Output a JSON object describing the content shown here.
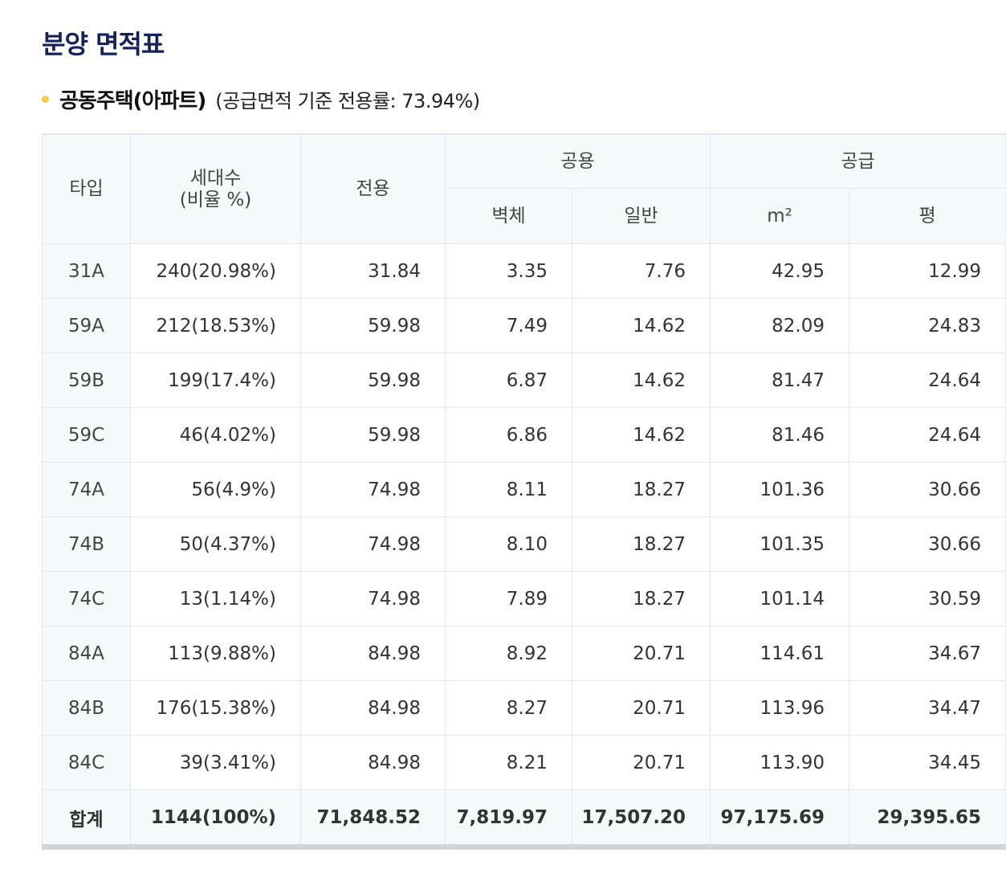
{
  "page": {
    "title": "분양 면적표",
    "section_title": "공동주택(아파트)",
    "section_note": "(공급면적 기준 전용률: 73.94%)"
  },
  "table": {
    "headers": {
      "type": "타입",
      "units_line1": "세대수",
      "units_line2": "(비율 %)",
      "exclusive": "전용",
      "common": "공용",
      "common_wall": "벽체",
      "common_general": "일반",
      "supply": "공급",
      "supply_m2": "m²",
      "supply_pyeong": "평"
    },
    "rows": [
      {
        "type": "31A",
        "units": "240(20.98%)",
        "exclusive": "31.84",
        "wall": "3.35",
        "general": "7.76",
        "m2": "42.95",
        "pyeong": "12.99"
      },
      {
        "type": "59A",
        "units": "212(18.53%)",
        "exclusive": "59.98",
        "wall": "7.49",
        "general": "14.62",
        "m2": "82.09",
        "pyeong": "24.83"
      },
      {
        "type": "59B",
        "units": "199(17.4%)",
        "exclusive": "59.98",
        "wall": "6.87",
        "general": "14.62",
        "m2": "81.47",
        "pyeong": "24.64"
      },
      {
        "type": "59C",
        "units": "46(4.02%)",
        "exclusive": "59.98",
        "wall": "6.86",
        "general": "14.62",
        "m2": "81.46",
        "pyeong": "24.64"
      },
      {
        "type": "74A",
        "units": "56(4.9%)",
        "exclusive": "74.98",
        "wall": "8.11",
        "general": "18.27",
        "m2": "101.36",
        "pyeong": "30.66"
      },
      {
        "type": "74B",
        "units": "50(4.37%)",
        "exclusive": "74.98",
        "wall": "8.10",
        "general": "18.27",
        "m2": "101.35",
        "pyeong": "30.66"
      },
      {
        "type": "74C",
        "units": "13(1.14%)",
        "exclusive": "74.98",
        "wall": "7.89",
        "general": "18.27",
        "m2": "101.14",
        "pyeong": "30.59"
      },
      {
        "type": "84A",
        "units": "113(9.88%)",
        "exclusive": "84.98",
        "wall": "8.92",
        "general": "20.71",
        "m2": "114.61",
        "pyeong": "34.67"
      },
      {
        "type": "84B",
        "units": "176(15.38%)",
        "exclusive": "84.98",
        "wall": "8.27",
        "general": "20.71",
        "m2": "113.96",
        "pyeong": "34.47"
      },
      {
        "type": "84C",
        "units": "39(3.41%)",
        "exclusive": "84.98",
        "wall": "8.21",
        "general": "20.71",
        "m2": "113.90",
        "pyeong": "34.45"
      }
    ],
    "total": {
      "type": "합계",
      "units": "1144(100%)",
      "exclusive": "71,848.52",
      "wall": "7,819.97",
      "general": "17,507.20",
      "m2": "97,175.69",
      "pyeong": "29,395.65"
    }
  }
}
